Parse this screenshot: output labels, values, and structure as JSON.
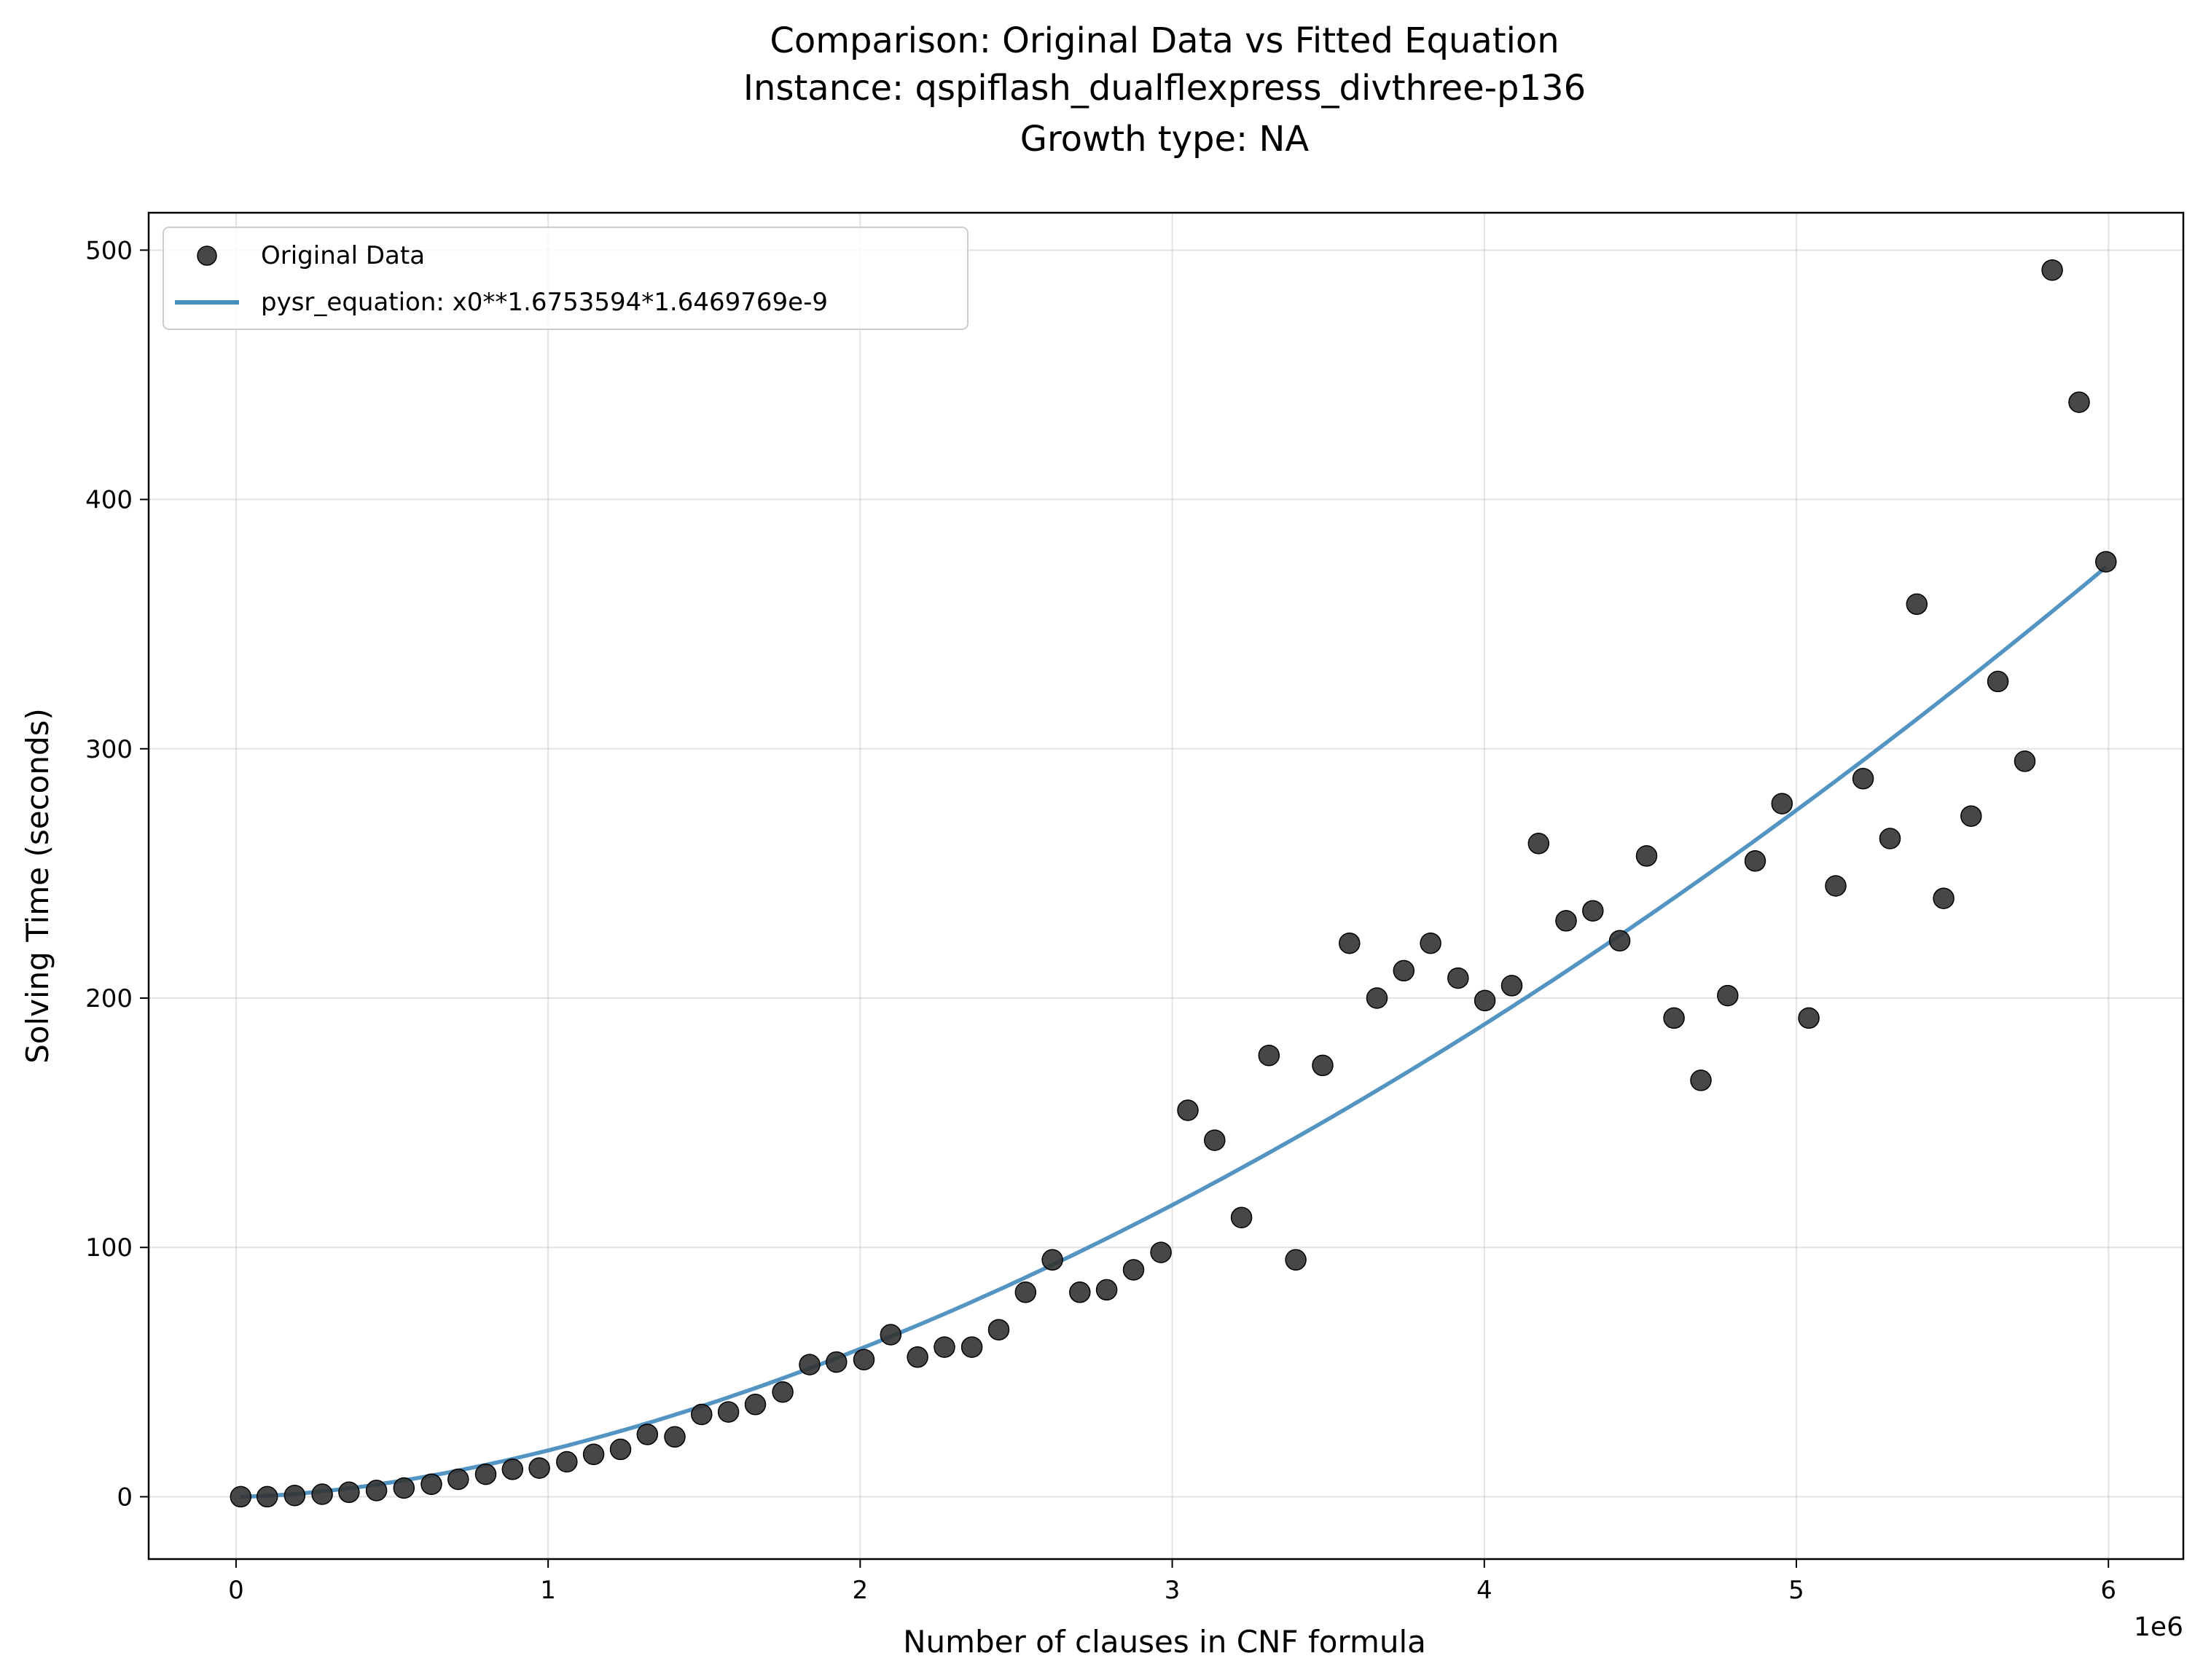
{
  "chart_data": {
    "type": "scatter",
    "title_lines": [
      "Comparison: Original Data vs Fitted Equation",
      "Instance: qspiflash_dualflexpress_divthree-p136",
      "Growth type: NA"
    ],
    "xlabel": "Number of clauses in CNF formula",
    "ylabel": "Solving Time (seconds)",
    "x_offset_label": "1e6",
    "xlim": [
      -280000,
      6240000
    ],
    "ylim": [
      -25,
      515
    ],
    "x_ticks": [
      0,
      1000000,
      2000000,
      3000000,
      4000000,
      5000000,
      6000000
    ],
    "x_tick_labels": [
      "0",
      "1",
      "2",
      "3",
      "4",
      "5",
      "6"
    ],
    "y_ticks": [
      0,
      100,
      200,
      300,
      400,
      500
    ],
    "y_tick_labels": [
      "0",
      "100",
      "200",
      "300",
      "400",
      "500"
    ],
    "grid": true,
    "legend_position": "top-left",
    "series": [
      {
        "name": "Original Data",
        "kind": "scatter",
        "color": "#333333",
        "x": [
          15000,
          100000,
          188000,
          276000,
          362000,
          450000,
          538000,
          626000,
          712000,
          800000,
          886000,
          972000,
          1060000,
          1146000,
          1232000,
          1318000,
          1406000,
          1492000,
          1578000,
          1664000,
          1752000,
          1838000,
          1924000,
          2012000,
          2098000,
          2184000,
          2270000,
          2358000,
          2444000,
          2530000,
          2616000,
          2704000,
          2790000,
          2876000,
          2964000,
          3050000,
          3136000,
          3222000,
          3310000,
          3396000,
          3482000,
          3568000,
          3656000,
          3742000,
          3828000,
          3916000,
          4002000,
          4088000,
          4174000,
          4262000,
          4348000,
          4434000,
          4520000,
          4608000,
          4694000,
          4780000,
          4868000,
          4954000,
          5040000,
          5126000,
          5214000,
          5300000,
          5386000,
          5472000,
          5560000,
          5646000,
          5732000,
          5820000,
          5906000,
          5992000
        ],
        "y": [
          0,
          0,
          0.5,
          1,
          1.8,
          2.5,
          3.5,
          5,
          7,
          9,
          11,
          11.5,
          14,
          17,
          19,
          25,
          24,
          33,
          34,
          37,
          42,
          53,
          54,
          55,
          65,
          56,
          60,
          60,
          67,
          82,
          95,
          82,
          83,
          91,
          98,
          155,
          143,
          112,
          177,
          95,
          173,
          222,
          200,
          211,
          222,
          208,
          199,
          205,
          262,
          231,
          235,
          223,
          257,
          192,
          167,
          201,
          255,
          278,
          192,
          245,
          288,
          264,
          358,
          240,
          273,
          327,
          295,
          492,
          439,
          375
        ]
      },
      {
        "name": "pysr_equation: x0**1.6753594*1.6469769e-9",
        "kind": "line",
        "color": "#4a8ec0",
        "exponent": 1.6753594,
        "coefficient": 1.6469769e-09,
        "x_range": [
          15000,
          5992000
        ]
      }
    ]
  }
}
